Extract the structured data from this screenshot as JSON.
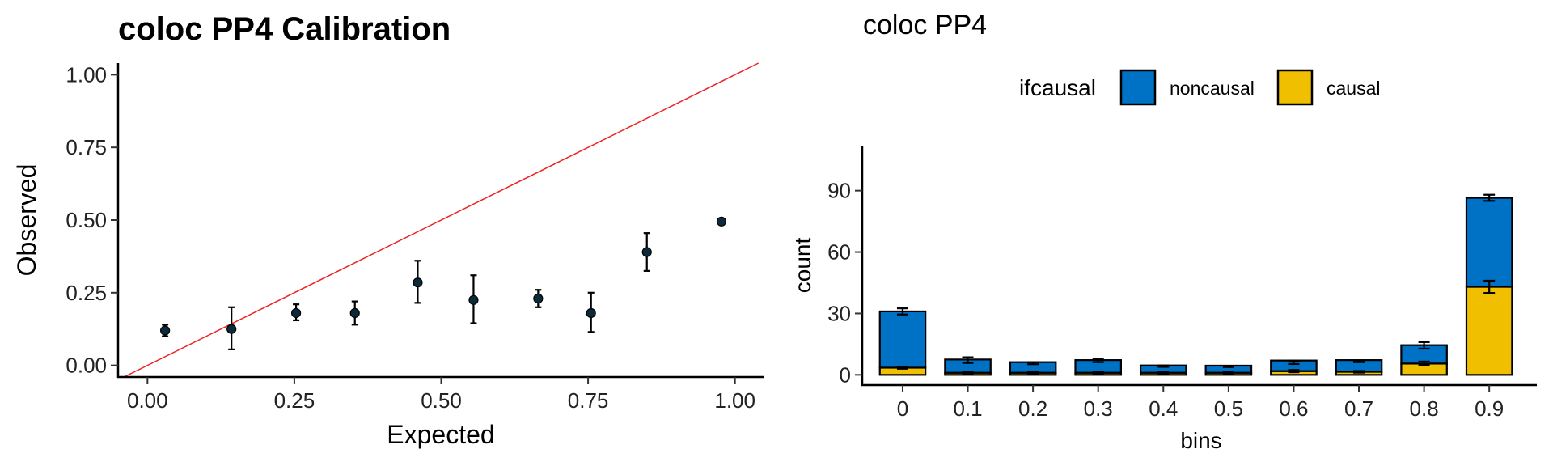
{
  "chart_data": [
    {
      "type": "scatter",
      "title": "coloc PP4 Calibration",
      "xlabel": "Expected",
      "ylabel": "Observed",
      "xlim": [
        -0.05,
        1.05
      ],
      "ylim": [
        -0.04,
        1.04
      ],
      "xticks": [
        "0.00",
        "0.25",
        "0.50",
        "0.75",
        "1.00"
      ],
      "yticks": [
        "0.00",
        "0.25",
        "0.50",
        "0.75",
        "1.00"
      ],
      "reference_line": {
        "slope": 1,
        "intercept": 0,
        "color": "#ee2222"
      },
      "point_color": "#0b2a3a",
      "points": [
        {
          "x": 0.03,
          "y": 0.12,
          "ymin": 0.1,
          "ymax": 0.14
        },
        {
          "x": 0.143,
          "y": 0.125,
          "ymin": 0.055,
          "ymax": 0.2
        },
        {
          "x": 0.253,
          "y": 0.18,
          "ymin": 0.155,
          "ymax": 0.21
        },
        {
          "x": 0.353,
          "y": 0.18,
          "ymin": 0.14,
          "ymax": 0.22
        },
        {
          "x": 0.46,
          "y": 0.285,
          "ymin": 0.215,
          "ymax": 0.36
        },
        {
          "x": 0.555,
          "y": 0.225,
          "ymin": 0.145,
          "ymax": 0.31
        },
        {
          "x": 0.665,
          "y": 0.23,
          "ymin": 0.2,
          "ymax": 0.26
        },
        {
          "x": 0.755,
          "y": 0.18,
          "ymin": 0.115,
          "ymax": 0.25
        },
        {
          "x": 0.85,
          "y": 0.39,
          "ymin": 0.325,
          "ymax": 0.455
        },
        {
          "x": 0.977,
          "y": 0.495,
          "ymin": 0.49,
          "ymax": 0.5
        }
      ],
      "grid": false
    },
    {
      "type": "bar",
      "stacked": true,
      "title": "coloc PP4",
      "xlabel": "bins",
      "ylabel": "count",
      "ylim": [
        -5,
        112
      ],
      "yticks": [
        "0",
        "30",
        "60",
        "90"
      ],
      "categories": [
        "0",
        "0.1",
        "0.2",
        "0.3",
        "0.4",
        "0.5",
        "0.6",
        "0.7",
        "0.8",
        "0.9"
      ],
      "legend": {
        "title": "ifcausal",
        "position": "top"
      },
      "series": [
        {
          "name": "noncausal",
          "color": "#0072c6",
          "values": [
            27.5,
            6.5,
            5.2,
            6.2,
            3.6,
            3.5,
            5.2,
            5.7,
            9.0,
            43.5
          ],
          "total_error": [
            [
              29.5,
              32.5
            ],
            [
              5.8,
              8.6
            ],
            [
              5.2,
              6.2
            ],
            [
              6.2,
              7.6
            ],
            [
              3.9,
              4.6
            ],
            [
              3.8,
              4.3
            ],
            [
              5.3,
              6.9
            ],
            [
              6.2,
              7.0
            ],
            [
              12.8,
              16.0
            ],
            [
              85.0,
              88.0
            ]
          ]
        },
        {
          "name": "causal",
          "color": "#f0c000",
          "values": [
            3.5,
            1.0,
            1.0,
            1.0,
            1.0,
            1.0,
            1.8,
            1.5,
            5.5,
            43.0
          ],
          "error": [
            [
              3.0,
              4.0
            ],
            [
              0.6,
              1.5
            ],
            [
              0.7,
              1.3
            ],
            [
              0.7,
              1.3
            ],
            [
              0.7,
              1.3
            ],
            [
              0.7,
              1.3
            ],
            [
              1.3,
              2.4
            ],
            [
              1.1,
              1.9
            ],
            [
              4.8,
              6.5
            ],
            [
              40.0,
              46.0
            ]
          ]
        }
      ],
      "grid": false
    }
  ]
}
